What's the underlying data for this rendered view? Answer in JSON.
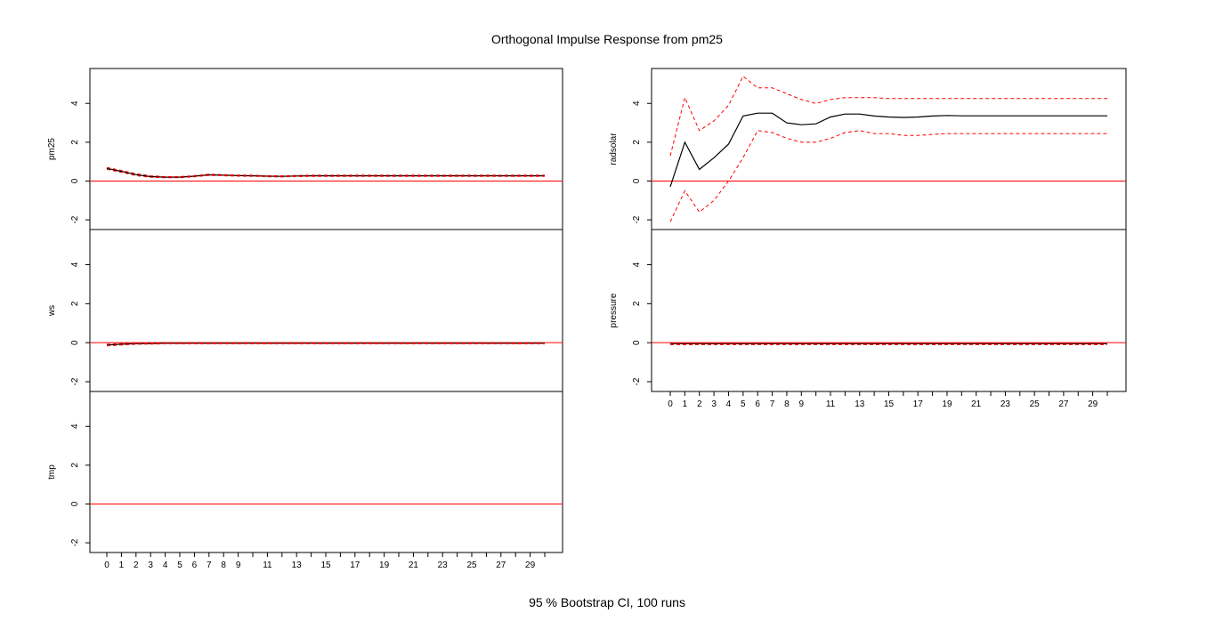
{
  "title": "Orthogonal Impulse Response from pm25",
  "footer": "95 % Bootstrap CI,  100 runs",
  "colors": {
    "response": "#000000",
    "ci": "#ff0000",
    "zero_line": "#ff0000",
    "frame": "#000000"
  },
  "chart_data": [
    {
      "type": "line",
      "panel": "pm25",
      "ylabel": "pm25",
      "ylim": [
        -2.5,
        5.8
      ],
      "yticks": [
        "-2",
        "0",
        "2",
        "4"
      ],
      "x": [
        0,
        1,
        2,
        3,
        4,
        5,
        6,
        7,
        8,
        9,
        10,
        11,
        12,
        13,
        14,
        15,
        16,
        17,
        18,
        19,
        20,
        21,
        22,
        23,
        24,
        25,
        26,
        27,
        28,
        29,
        30
      ],
      "series": [
        {
          "role": "response",
          "values": [
            0.65,
            0.5,
            0.33,
            0.23,
            0.2,
            0.2,
            0.25,
            0.32,
            0.3,
            0.28,
            0.27,
            0.25,
            0.24,
            0.26,
            0.27,
            0.27,
            0.27,
            0.27,
            0.27,
            0.27,
            0.27,
            0.27,
            0.27,
            0.27,
            0.27,
            0.27,
            0.27,
            0.27,
            0.27,
            0.27,
            0.27
          ]
        },
        {
          "role": "upper",
          "values": [
            0.7,
            0.55,
            0.38,
            0.27,
            0.23,
            0.23,
            0.28,
            0.35,
            0.33,
            0.31,
            0.3,
            0.28,
            0.27,
            0.29,
            0.3,
            0.3,
            0.3,
            0.3,
            0.3,
            0.3,
            0.3,
            0.3,
            0.3,
            0.3,
            0.3,
            0.3,
            0.3,
            0.3,
            0.3,
            0.3,
            0.3
          ]
        },
        {
          "role": "lower",
          "values": [
            0.6,
            0.45,
            0.28,
            0.19,
            0.17,
            0.17,
            0.22,
            0.29,
            0.27,
            0.25,
            0.24,
            0.22,
            0.21,
            0.23,
            0.24,
            0.24,
            0.24,
            0.24,
            0.24,
            0.24,
            0.24,
            0.24,
            0.24,
            0.24,
            0.24,
            0.24,
            0.24,
            0.24,
            0.24,
            0.24,
            0.24
          ]
        }
      ]
    },
    {
      "type": "line",
      "panel": "ws",
      "ylabel": "ws",
      "ylim": [
        -2.5,
        5.8
      ],
      "yticks": [
        "-2",
        "0",
        "2",
        "4"
      ],
      "x": [
        0,
        1,
        2,
        3,
        4,
        5,
        6,
        7,
        8,
        9,
        10,
        11,
        12,
        13,
        14,
        15,
        16,
        17,
        18,
        19,
        20,
        21,
        22,
        23,
        24,
        25,
        26,
        27,
        28,
        29,
        30
      ],
      "series": [
        {
          "role": "response",
          "values": [
            -0.12,
            -0.08,
            -0.05,
            -0.04,
            -0.03,
            -0.03,
            -0.03,
            -0.03,
            -0.03,
            -0.03,
            -0.03,
            -0.03,
            -0.03,
            -0.03,
            -0.03,
            -0.03,
            -0.03,
            -0.03,
            -0.03,
            -0.03,
            -0.03,
            -0.03,
            -0.03,
            -0.03,
            -0.03,
            -0.03,
            -0.03,
            -0.03,
            -0.03,
            -0.03,
            -0.03
          ]
        },
        {
          "role": "upper",
          "values": [
            -0.08,
            -0.04,
            -0.02,
            -0.01,
            0,
            0,
            0,
            0,
            0,
            0,
            0,
            0,
            0,
            0,
            0,
            0,
            0,
            0,
            0,
            0,
            0,
            0,
            0,
            0,
            0,
            0,
            0,
            0,
            0,
            0,
            0
          ]
        },
        {
          "role": "lower",
          "values": [
            -0.16,
            -0.12,
            -0.08,
            -0.07,
            -0.06,
            -0.06,
            -0.06,
            -0.06,
            -0.06,
            -0.06,
            -0.06,
            -0.06,
            -0.06,
            -0.06,
            -0.06,
            -0.06,
            -0.06,
            -0.06,
            -0.06,
            -0.06,
            -0.06,
            -0.06,
            -0.06,
            -0.06,
            -0.06,
            -0.06,
            -0.06,
            -0.06,
            -0.06,
            -0.06,
            -0.06
          ]
        }
      ]
    },
    {
      "type": "line",
      "panel": "tmp",
      "ylabel": "tmp",
      "ylim": [
        -2.5,
        5.8
      ],
      "yticks": [
        "-2",
        "0",
        "2",
        "4"
      ],
      "xticks": [
        "0",
        "1",
        "2",
        "3",
        "4",
        "5",
        "6",
        "7",
        "8",
        "9",
        "11",
        "13",
        "15",
        "17",
        "19",
        "21",
        "23",
        "25",
        "27",
        "29"
      ],
      "x": [
        0,
        1,
        2,
        3,
        4,
        5,
        6,
        7,
        8,
        9,
        10,
        11,
        12,
        13,
        14,
        15,
        16,
        17,
        18,
        19,
        20,
        21,
        22,
        23,
        24,
        25,
        26,
        27,
        28,
        29,
        30
      ],
      "series": []
    },
    {
      "type": "line",
      "panel": "radsolar",
      "ylabel": "radsolar",
      "ylim": [
        -2.5,
        5.8
      ],
      "yticks": [
        "-2",
        "0",
        "2",
        "4"
      ],
      "x": [
        0,
        1,
        2,
        3,
        4,
        5,
        6,
        7,
        8,
        9,
        10,
        11,
        12,
        13,
        14,
        15,
        16,
        17,
        18,
        19,
        20,
        21,
        22,
        23,
        24,
        25,
        26,
        27,
        28,
        29,
        30
      ],
      "series": [
        {
          "role": "response",
          "values": [
            -0.3,
            2.0,
            0.6,
            1.2,
            1.9,
            3.35,
            3.5,
            3.5,
            3.0,
            2.9,
            2.95,
            3.3,
            3.45,
            3.45,
            3.35,
            3.3,
            3.28,
            3.3,
            3.35,
            3.38,
            3.36,
            3.36,
            3.36,
            3.36,
            3.36,
            3.36,
            3.36,
            3.36,
            3.36,
            3.36,
            3.36
          ]
        },
        {
          "role": "upper",
          "values": [
            1.3,
            4.3,
            2.6,
            3.1,
            3.9,
            5.4,
            4.8,
            4.8,
            4.5,
            4.2,
            4.0,
            4.2,
            4.3,
            4.3,
            4.3,
            4.25,
            4.25,
            4.25,
            4.25,
            4.25,
            4.25,
            4.25,
            4.25,
            4.25,
            4.25,
            4.25,
            4.25,
            4.25,
            4.25,
            4.25,
            4.25
          ]
        },
        {
          "role": "lower",
          "values": [
            -2.1,
            -0.5,
            -1.6,
            -1.0,
            0,
            1.2,
            2.6,
            2.5,
            2.2,
            2.0,
            2.0,
            2.2,
            2.5,
            2.6,
            2.45,
            2.45,
            2.35,
            2.35,
            2.4,
            2.45,
            2.45,
            2.45,
            2.45,
            2.45,
            2.45,
            2.45,
            2.45,
            2.45,
            2.45,
            2.45,
            2.45
          ]
        }
      ]
    },
    {
      "type": "line",
      "panel": "pressure",
      "ylabel": "pressure",
      "ylim": [
        -2.5,
        5.8
      ],
      "yticks": [
        "-2",
        "0",
        "2",
        "4"
      ],
      "xticks": [
        "0",
        "1",
        "2",
        "3",
        "4",
        "5",
        "6",
        "7",
        "8",
        "9",
        "11",
        "13",
        "15",
        "17",
        "19",
        "21",
        "23",
        "25",
        "27",
        "29"
      ],
      "x": [
        0,
        1,
        2,
        3,
        4,
        5,
        6,
        7,
        8,
        9,
        10,
        11,
        12,
        13,
        14,
        15,
        16,
        17,
        18,
        19,
        20,
        21,
        22,
        23,
        24,
        25,
        26,
        27,
        28,
        29,
        30
      ],
      "series": [
        {
          "role": "response",
          "values": [
            -0.05,
            -0.05,
            -0.05,
            -0.05,
            -0.05,
            -0.05,
            -0.05,
            -0.05,
            -0.05,
            -0.05,
            -0.05,
            -0.05,
            -0.05,
            -0.05,
            -0.05,
            -0.05,
            -0.05,
            -0.05,
            -0.05,
            -0.05,
            -0.05,
            -0.05,
            -0.05,
            -0.05,
            -0.05,
            -0.05,
            -0.05,
            -0.05,
            -0.05,
            -0.05,
            -0.05
          ]
        },
        {
          "role": "upper",
          "values": [
            -0.02,
            -0.02,
            -0.02,
            -0.02,
            -0.02,
            -0.02,
            -0.02,
            -0.02,
            -0.02,
            -0.02,
            -0.02,
            -0.02,
            -0.02,
            -0.02,
            -0.02,
            -0.02,
            -0.02,
            -0.02,
            -0.02,
            -0.02,
            -0.02,
            -0.02,
            -0.02,
            -0.02,
            -0.02,
            -0.02,
            -0.02,
            -0.02,
            -0.02,
            -0.02,
            -0.02
          ]
        },
        {
          "role": "lower",
          "values": [
            -0.1,
            -0.1,
            -0.1,
            -0.1,
            -0.1,
            -0.1,
            -0.1,
            -0.1,
            -0.1,
            -0.1,
            -0.1,
            -0.1,
            -0.1,
            -0.1,
            -0.1,
            -0.1,
            -0.1,
            -0.1,
            -0.1,
            -0.1,
            -0.1,
            -0.1,
            -0.1,
            -0.1,
            -0.1,
            -0.1,
            -0.1,
            -0.1,
            -0.1,
            -0.1,
            -0.1
          ]
        }
      ]
    }
  ]
}
